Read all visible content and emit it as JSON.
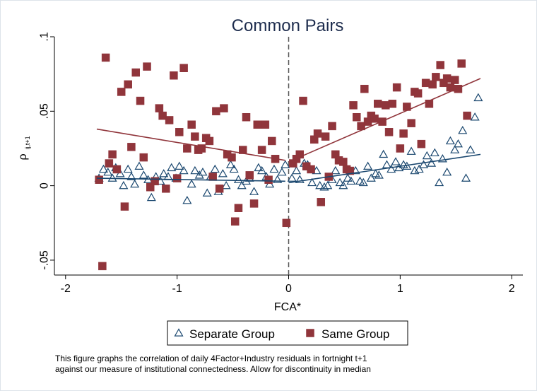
{
  "chart_data": {
    "type": "scatter",
    "title": "Common Pairs",
    "xlabel": "FCA*",
    "ylabel": "ρ",
    "ylabel_subscript": "ij,t+1",
    "xlim": [
      -2.1,
      2.1
    ],
    "ylim": [
      -0.06,
      0.1
    ],
    "x_ticks": [
      -2,
      -1,
      0,
      1,
      2
    ],
    "x_tick_labels": [
      "-2",
      "-1",
      "0",
      "1",
      "2"
    ],
    "y_ticks": [
      -0.05,
      0,
      0.05,
      0.1
    ],
    "y_tick_labels": [
      "-.05",
      "0",
      ".05",
      ".1"
    ],
    "grid": false,
    "discontinuity_x": 0,
    "legend_position": "bottom",
    "series": [
      {
        "name": "Separate Group",
        "marker": "triangle",
        "color": "#1a476f",
        "points": [
          [
            -1.7,
            0.005
          ],
          [
            -1.66,
            0.011
          ],
          [
            -1.62,
            0.009
          ],
          [
            -1.58,
            0.005
          ],
          [
            -1.55,
            0.012
          ],
          [
            -1.51,
            0.008
          ],
          [
            -1.48,
            0.0
          ],
          [
            -1.44,
            0.011
          ],
          [
            -1.41,
            0.006
          ],
          [
            -1.38,
            0.001
          ],
          [
            -1.34,
            0.013
          ],
          [
            -1.3,
            0.007
          ],
          [
            -1.26,
            0.004
          ],
          [
            -1.23,
            -0.008
          ],
          [
            -1.19,
            0.006
          ],
          [
            -1.15,
            0.003
          ],
          [
            -1.12,
            0.008
          ],
          [
            -1.08,
            0.006
          ],
          [
            -1.05,
            0.012
          ],
          [
            -1.01,
            0.005
          ],
          [
            -0.98,
            0.013
          ],
          [
            -0.94,
            0.01
          ],
          [
            -0.91,
            -0.01
          ],
          [
            -0.87,
            0.001
          ],
          [
            -0.84,
            0.01
          ],
          [
            -0.8,
            0.007
          ],
          [
            -0.77,
            0.009
          ],
          [
            -0.73,
            -0.005
          ],
          [
            -0.7,
            0.006
          ],
          [
            -0.66,
            0.011
          ],
          [
            -0.63,
            -0.004
          ],
          [
            -0.59,
            0.008
          ],
          [
            -0.56,
            0.0
          ],
          [
            -0.52,
            0.014
          ],
          [
            -0.49,
            0.011
          ],
          [
            -0.45,
            0.004
          ],
          [
            -0.42,
            0.0
          ],
          [
            -0.38,
            0.003
          ],
          [
            -0.35,
            0.005
          ],
          [
            -0.31,
            -0.004
          ],
          [
            -0.27,
            0.012
          ],
          [
            -0.24,
            0.01
          ],
          [
            -0.2,
            0.006
          ],
          [
            -0.17,
            0.001
          ],
          [
            -0.13,
            0.011
          ],
          [
            -0.1,
            0.004
          ],
          [
            -0.06,
            0.009
          ],
          [
            -0.03,
            0.014
          ],
          [
            0.03,
            0.005
          ],
          [
            0.07,
            0.01
          ],
          [
            0.1,
            0.004
          ],
          [
            0.14,
            0.015
          ],
          [
            0.17,
            0.014
          ],
          [
            0.21,
            0.002
          ],
          [
            0.25,
            0.01
          ],
          [
            0.28,
            0.0
          ],
          [
            0.32,
            -0.001
          ],
          [
            0.35,
            0.0
          ],
          [
            0.39,
            0.004
          ],
          [
            0.42,
            0.01
          ],
          [
            0.46,
            0.002
          ],
          [
            0.49,
            0.0
          ],
          [
            0.53,
            0.005
          ],
          [
            0.56,
            0.003
          ],
          [
            0.6,
            0.01
          ],
          [
            0.64,
            0.003
          ],
          [
            0.67,
            0.002
          ],
          [
            0.71,
            0.013
          ],
          [
            0.74,
            0.005
          ],
          [
            0.78,
            0.008
          ],
          [
            0.81,
            0.007
          ],
          [
            0.85,
            0.021
          ],
          [
            0.88,
            0.014
          ],
          [
            0.92,
            0.011
          ],
          [
            0.96,
            0.016
          ],
          [
            0.99,
            0.012
          ],
          [
            1.03,
            0.014
          ],
          [
            1.06,
            0.013
          ],
          [
            1.1,
            0.023
          ],
          [
            1.13,
            0.01
          ],
          [
            1.17,
            0.011
          ],
          [
            1.21,
            0.014
          ],
          [
            1.24,
            0.02
          ],
          [
            1.28,
            0.015
          ],
          [
            1.31,
            0.022
          ],
          [
            1.35,
            0.002
          ],
          [
            1.38,
            0.018
          ],
          [
            1.42,
            0.009
          ],
          [
            1.45,
            0.03
          ],
          [
            1.49,
            0.024
          ],
          [
            1.52,
            0.028
          ],
          [
            1.56,
            0.037
          ],
          [
            1.59,
            0.005
          ],
          [
            1.63,
            0.024
          ],
          [
            1.67,
            0.046
          ],
          [
            1.7,
            0.059
          ]
        ],
        "fit_left": [
          [
            -1.72,
            0.005
          ],
          [
            -0.03,
            0.003
          ]
        ],
        "fit_right": [
          [
            0.0,
            0.002
          ],
          [
            1.72,
            0.021
          ]
        ]
      },
      {
        "name": "Same Group",
        "marker": "square",
        "color": "#90353b",
        "points": [
          [
            -1.7,
            0.004
          ],
          [
            -1.67,
            -0.054
          ],
          [
            -1.64,
            0.086
          ],
          [
            -1.61,
            0.015
          ],
          [
            -1.58,
            0.021
          ],
          [
            -1.54,
            0.011
          ],
          [
            -1.5,
            0.063
          ],
          [
            -1.47,
            -0.014
          ],
          [
            -1.44,
            0.068
          ],
          [
            -1.41,
            0.026
          ],
          [
            -1.37,
            0.076
          ],
          [
            -1.33,
            0.057
          ],
          [
            -1.3,
            0.019
          ],
          [
            -1.27,
            0.08
          ],
          [
            -1.24,
            -0.001
          ],
          [
            -1.2,
            0.003
          ],
          [
            -1.16,
            0.052
          ],
          [
            -1.13,
            0.047
          ],
          [
            -1.1,
            -0.002
          ],
          [
            -1.07,
            0.044
          ],
          [
            -1.03,
            0.074
          ],
          [
            -1.0,
            0.005
          ],
          [
            -0.98,
            0.036
          ],
          [
            -0.94,
            0.079
          ],
          [
            -0.91,
            0.025
          ],
          [
            -0.87,
            0.041
          ],
          [
            -0.84,
            0.033
          ],
          [
            -0.81,
            0.024
          ],
          [
            -0.78,
            0.025
          ],
          [
            -0.74,
            0.032
          ],
          [
            -0.71,
            0.03
          ],
          [
            -0.68,
            0.006
          ],
          [
            -0.65,
            0.05
          ],
          [
            -0.62,
            -0.002
          ],
          [
            -0.58,
            0.052
          ],
          [
            -0.55,
            0.021
          ],
          [
            -0.51,
            0.019
          ],
          [
            -0.48,
            -0.024
          ],
          [
            -0.45,
            -0.015
          ],
          [
            -0.41,
            0.024
          ],
          [
            -0.38,
            0.046
          ],
          [
            -0.35,
            0.007
          ],
          [
            -0.31,
            -0.012
          ],
          [
            -0.28,
            0.041
          ],
          [
            -0.24,
            0.024
          ],
          [
            -0.21,
            0.041
          ],
          [
            -0.18,
            0.004
          ],
          [
            -0.15,
            0.03
          ],
          [
            -0.12,
            0.018
          ],
          [
            -0.02,
            -0.025
          ],
          [
            0.04,
            0.015
          ],
          [
            0.07,
            0.018
          ],
          [
            0.1,
            0.021
          ],
          [
            0.13,
            0.057
          ],
          [
            0.16,
            0.013
          ],
          [
            0.2,
            0.011
          ],
          [
            0.23,
            0.031
          ],
          [
            0.26,
            0.035
          ],
          [
            0.29,
            -0.011
          ],
          [
            0.33,
            0.033
          ],
          [
            0.36,
            0.006
          ],
          [
            0.39,
            0.04
          ],
          [
            0.42,
            0.021
          ],
          [
            0.45,
            0.017
          ],
          [
            0.49,
            0.016
          ],
          [
            0.52,
            0.011
          ],
          [
            0.55,
            0.01
          ],
          [
            0.58,
            0.054
          ],
          [
            0.61,
            0.046
          ],
          [
            0.65,
            0.04
          ],
          [
            0.68,
            0.065
          ],
          [
            0.71,
            0.043
          ],
          [
            0.74,
            0.047
          ],
          [
            0.77,
            0.045
          ],
          [
            0.8,
            0.055
          ],
          [
            0.84,
            0.043
          ],
          [
            0.87,
            0.054
          ],
          [
            0.9,
            0.036
          ],
          [
            0.93,
            0.055
          ],
          [
            0.97,
            0.066
          ],
          [
            1.0,
            0.025
          ],
          [
            1.03,
            0.035
          ],
          [
            1.06,
            0.053
          ],
          [
            1.1,
            0.042
          ],
          [
            1.13,
            0.063
          ],
          [
            1.16,
            0.062
          ],
          [
            1.19,
            0.028
          ],
          [
            1.23,
            0.069
          ],
          [
            1.26,
            0.055
          ],
          [
            1.29,
            0.068
          ],
          [
            1.32,
            0.073
          ],
          [
            1.36,
            0.081
          ],
          [
            1.39,
            0.069
          ],
          [
            1.42,
            0.072
          ],
          [
            1.45,
            0.066
          ],
          [
            1.49,
            0.071
          ],
          [
            1.52,
            0.065
          ],
          [
            1.55,
            0.082
          ],
          [
            1.6,
            0.047
          ]
        ],
        "fit_left": [
          [
            -1.72,
            0.038
          ],
          [
            -0.03,
            0.017
          ]
        ],
        "fit_right": [
          [
            0.0,
            0.016
          ],
          [
            1.72,
            0.072
          ]
        ]
      }
    ]
  },
  "caption": {
    "line1": "This figure graphs the correlation of daily 4Factor+Industry residuals in fortnight t+1",
    "line2": " against our measure of institutional connectedness.  Allow for discontinuity in median"
  }
}
